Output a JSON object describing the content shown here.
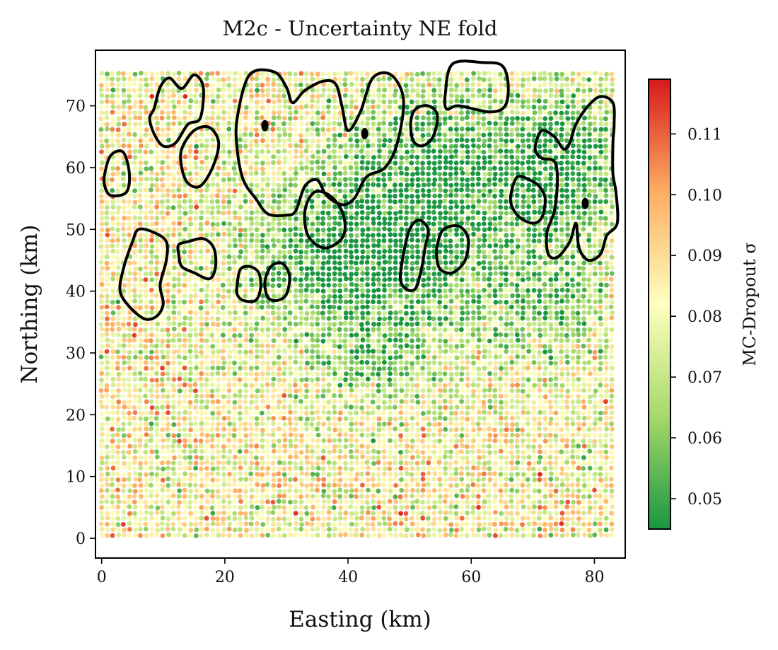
{
  "chart_data": {
    "type": "scatter",
    "title": "M2c - Uncertainty NE fold",
    "xlabel": "Easting (km)",
    "ylabel": "Northing (km)",
    "xlim": [
      -1,
      85
    ],
    "ylim": [
      -3.2,
      79
    ],
    "xticks": [
      "0",
      "20",
      "40",
      "60",
      "80"
    ],
    "yticks": [
      "0",
      "10",
      "20",
      "30",
      "40",
      "50",
      "60",
      "70"
    ],
    "grid": false,
    "grid_points": {
      "x_min": 0,
      "x_max": 83.5,
      "y_min": 0.5,
      "y_max": 75.5,
      "spacing": 0.9
    },
    "colormap": {
      "name": "RdYlGn_r",
      "low_color": "#1a9641",
      "mid_color": "#ffffbf",
      "high_color": "#d7191c"
    },
    "colorbar": {
      "label": "MC-Dropout σ",
      "range": [
        0.045,
        0.119
      ],
      "ticks": [
        "0.05",
        "0.06",
        "0.07",
        "0.08",
        "0.09",
        "0.10",
        "0.11"
      ],
      "tick_values": [
        0.05,
        0.06,
        0.07,
        0.08,
        0.09,
        0.1,
        0.11
      ],
      "position": "right"
    },
    "low_uncertainty_zones": [
      {
        "cx": 42,
        "cy": 45,
        "rx": 18,
        "ry": 12,
        "strength": 0.55
      },
      {
        "cx": 55,
        "cy": 60,
        "rx": 14,
        "ry": 12,
        "strength": 0.45
      },
      {
        "cx": 75,
        "cy": 60,
        "rx": 10,
        "ry": 12,
        "strength": 0.45
      },
      {
        "cx": 72,
        "cy": 38,
        "rx": 10,
        "ry": 8,
        "strength": 0.3
      },
      {
        "cx": 45,
        "cy": 28,
        "rx": 10,
        "ry": 7,
        "strength": 0.25
      }
    ],
    "contours": [
      {
        "name": "c1",
        "points": [
          [
            8.5,
            69.5
          ],
          [
            9.5,
            73
          ],
          [
            11,
            74.5
          ],
          [
            13,
            72.8
          ],
          [
            15,
            75
          ],
          [
            16.5,
            73
          ],
          [
            16,
            68
          ],
          [
            14,
            67
          ],
          [
            12,
            64
          ],
          [
            10,
            63.5
          ],
          [
            8.5,
            65.5
          ],
          [
            7.8,
            68
          ]
        ]
      },
      {
        "name": "c2",
        "points": [
          [
            13,
            63
          ],
          [
            15,
            66
          ],
          [
            17.5,
            66.5
          ],
          [
            19,
            64
          ],
          [
            18,
            60
          ],
          [
            16,
            57
          ],
          [
            14,
            57.5
          ],
          [
            13,
            60
          ]
        ]
      },
      {
        "name": "c3",
        "points": [
          [
            0.5,
            59
          ],
          [
            1.5,
            62
          ],
          [
            3.5,
            62.5
          ],
          [
            4.5,
            59
          ],
          [
            4,
            56
          ],
          [
            1.5,
            55.5
          ],
          [
            0.5,
            57
          ]
        ]
      },
      {
        "name": "c4",
        "points": [
          [
            22,
            68
          ],
          [
            24,
            75
          ],
          [
            28,
            75.5
          ],
          [
            30,
            73
          ],
          [
            31,
            70.5
          ],
          [
            33,
            72.5
          ],
          [
            36,
            74
          ],
          [
            38,
            73.5
          ],
          [
            39,
            70
          ],
          [
            40,
            66
          ],
          [
            42,
            69
          ],
          [
            44,
            74.5
          ],
          [
            47,
            75
          ],
          [
            49,
            71
          ],
          [
            48,
            64
          ],
          [
            46,
            60
          ],
          [
            43,
            58.5
          ],
          [
            41,
            55
          ],
          [
            39,
            54
          ],
          [
            36.5,
            55.5
          ],
          [
            35,
            58
          ],
          [
            33,
            57
          ],
          [
            31.5,
            53
          ],
          [
            30,
            52.3
          ],
          [
            27,
            52.5
          ],
          [
            25,
            55
          ],
          [
            23,
            58
          ],
          [
            22,
            63
          ]
        ]
      },
      {
        "name": "c5",
        "points": [
          [
            33,
            53
          ],
          [
            33.5,
            49
          ],
          [
            36,
            47
          ],
          [
            38.5,
            48
          ],
          [
            39.5,
            50
          ],
          [
            39,
            53
          ],
          [
            37,
            55.5
          ],
          [
            34.5,
            56
          ]
        ]
      },
      {
        "name": "c6",
        "points": [
          [
            22,
            41
          ],
          [
            22.5,
            43.5
          ],
          [
            24,
            44
          ],
          [
            25.5,
            43
          ],
          [
            25.8,
            40.5
          ],
          [
            25,
            38.5
          ],
          [
            23,
            38.5
          ],
          [
            22,
            39.5
          ]
        ]
      },
      {
        "name": "c7",
        "points": [
          [
            26.5,
            41.5
          ],
          [
            27.5,
            44
          ],
          [
            29.3,
            44.5
          ],
          [
            30.5,
            42.5
          ],
          [
            30,
            39.5
          ],
          [
            28.5,
            38.5
          ],
          [
            27,
            39
          ]
        ]
      },
      {
        "name": "c8",
        "points": [
          [
            5,
            48
          ],
          [
            6,
            50
          ],
          [
            8.5,
            49.5
          ],
          [
            10.5,
            48
          ],
          [
            10.5,
            45
          ],
          [
            9.5,
            41
          ],
          [
            10,
            38
          ],
          [
            9,
            36
          ],
          [
            7,
            35.5
          ],
          [
            4.5,
            37.5
          ],
          [
            3,
            40
          ],
          [
            3.5,
            43.5
          ]
        ]
      },
      {
        "name": "c9",
        "points": [
          [
            12.5,
            47.5
          ],
          [
            14,
            48
          ],
          [
            16.5,
            48.5
          ],
          [
            18.2,
            47
          ],
          [
            18.5,
            44
          ],
          [
            17.5,
            42
          ],
          [
            15,
            43
          ],
          [
            13,
            44
          ],
          [
            12.5,
            46
          ]
        ]
      },
      {
        "name": "c10",
        "points": [
          [
            48.5,
            42
          ],
          [
            49,
            46
          ],
          [
            50,
            50
          ],
          [
            51.5,
            51.5
          ],
          [
            53,
            50
          ],
          [
            52.5,
            47
          ],
          [
            52,
            44
          ],
          [
            51,
            40.5
          ],
          [
            49.5,
            40.3
          ]
        ]
      },
      {
        "name": "c11",
        "points": [
          [
            54.5,
            47.5
          ],
          [
            55.5,
            50
          ],
          [
            58,
            50.5
          ],
          [
            59.5,
            48.5
          ],
          [
            59,
            45
          ],
          [
            57,
            43
          ],
          [
            55,
            43.5
          ],
          [
            54.4,
            45.5
          ]
        ]
      },
      {
        "name": "c12",
        "points": [
          [
            50.2,
            67.5
          ],
          [
            51,
            69.5
          ],
          [
            53,
            70
          ],
          [
            54.5,
            68.5
          ],
          [
            53.8,
            65
          ],
          [
            52,
            63.5
          ],
          [
            50.5,
            64.5
          ]
        ]
      },
      {
        "name": "c13",
        "points": [
          [
            55.8,
            72
          ],
          [
            57,
            76.8
          ],
          [
            62,
            77
          ],
          [
            65,
            76.5
          ],
          [
            66,
            73.5
          ],
          [
            65.5,
            70
          ],
          [
            63,
            69
          ],
          [
            58,
            70
          ],
          [
            56,
            69.5
          ]
        ]
      },
      {
        "name": "c14",
        "points": [
          [
            66.5,
            56
          ],
          [
            67.5,
            58.5
          ],
          [
            69.5,
            58
          ],
          [
            71,
            57
          ],
          [
            72,
            55
          ],
          [
            71.5,
            52
          ],
          [
            70,
            51
          ],
          [
            67.8,
            52
          ],
          [
            66.5,
            54
          ]
        ]
      },
      {
        "name": "c15",
        "points": [
          [
            70.5,
            64
          ],
          [
            71.5,
            66
          ],
          [
            73.5,
            65
          ],
          [
            75,
            63
          ],
          [
            76,
            64
          ],
          [
            77,
            67
          ],
          [
            79,
            70
          ],
          [
            81,
            71.5
          ],
          [
            83,
            70.5
          ],
          [
            83.2,
            67
          ],
          [
            83,
            64
          ],
          [
            83,
            59
          ],
          [
            83.5,
            56
          ],
          [
            83.7,
            51
          ],
          [
            82,
            49
          ],
          [
            81,
            46
          ],
          [
            79,
            45
          ],
          [
            77.5,
            47
          ],
          [
            77,
            51
          ],
          [
            76,
            48
          ],
          [
            74,
            45.5
          ],
          [
            72.5,
            46
          ],
          [
            72.3,
            49.5
          ],
          [
            73.5,
            53
          ],
          [
            74,
            58
          ],
          [
            73.5,
            61
          ],
          [
            71.5,
            61.5
          ],
          [
            70.5,
            62.5
          ]
        ]
      }
    ],
    "contour_dots": [
      {
        "x": 26.5,
        "y": 66.8
      },
      {
        "x": 42.7,
        "y": 65.5
      },
      {
        "x": 78.5,
        "y": 54.2
      }
    ]
  }
}
